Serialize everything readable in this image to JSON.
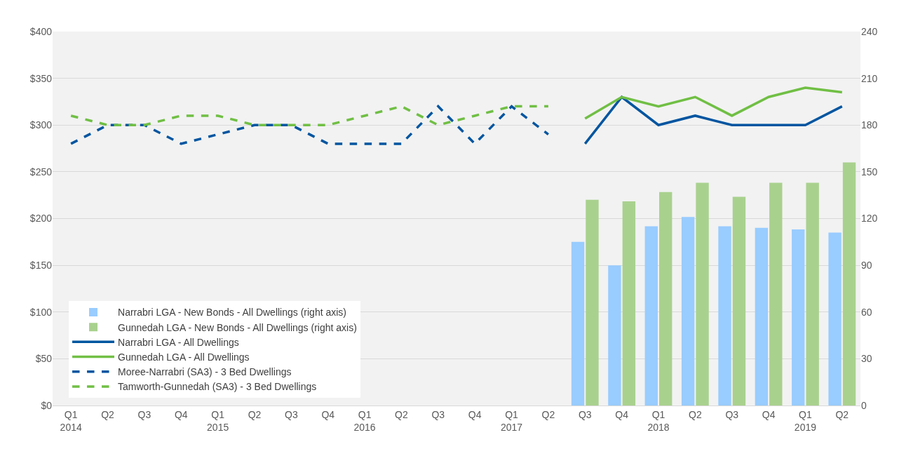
{
  "chart_data": {
    "type": "line",
    "categories": [
      "Q1\n2014",
      "Q2",
      "Q3",
      "Q4",
      "Q1\n2015",
      "Q2",
      "Q3",
      "Q4",
      "Q1\n2016",
      "Q2",
      "Q3",
      "Q4",
      "Q1\n2017",
      "Q2",
      "Q3",
      "Q4",
      "Q1\n2018",
      "Q2",
      "Q3",
      "Q4",
      "Q1\n2019",
      "Q2"
    ],
    "series": [
      {
        "name": "Narrabri LGA - New Bonds - All Dwellings (right axis)",
        "type": "bar",
        "axis": "y2",
        "color": "#99ccff",
        "values": [
          null,
          null,
          null,
          null,
          null,
          null,
          null,
          null,
          null,
          null,
          null,
          null,
          null,
          null,
          105,
          90,
          115,
          121,
          115,
          114,
          113,
          111
        ]
      },
      {
        "name": "Gunnedah LGA - New Bonds - All Dwellings (right axis)",
        "type": "bar",
        "axis": "y2",
        "color": "#a9d18e",
        "values": [
          null,
          null,
          null,
          null,
          null,
          null,
          null,
          null,
          null,
          null,
          null,
          null,
          null,
          null,
          132,
          131,
          137,
          143,
          134,
          143,
          143,
          156
        ]
      },
      {
        "name": "Narrabri LGA - All Dwellings",
        "color": "#0055a0",
        "line_style": "solid",
        "values": [
          null,
          null,
          null,
          null,
          null,
          null,
          null,
          null,
          null,
          null,
          null,
          null,
          null,
          null,
          280,
          330,
          300,
          310,
          300,
          300,
          300,
          320
        ]
      },
      {
        "name": "Gunnedah LGA - All Dwellings",
        "color": "#70bf44",
        "line_style": "solid",
        "values": [
          null,
          null,
          null,
          null,
          null,
          null,
          null,
          null,
          null,
          null,
          null,
          null,
          null,
          null,
          307,
          330,
          320,
          330,
          310,
          330,
          340,
          335
        ]
      },
      {
        "name": "Moree-Narrabri (SA3) - 3 Bed Dwellings",
        "color": "#0055a0",
        "line_style": "dashed",
        "values": [
          280,
          300,
          300,
          280,
          290,
          300,
          300,
          280,
          280,
          280,
          320,
          280,
          320,
          290,
          null,
          null,
          null,
          null,
          null,
          null,
          null,
          null
        ]
      },
      {
        "name": "Tamworth-Gunnedah (SA3) - 3 Bed Dwellings",
        "color": "#70bf44",
        "line_style": "dashed",
        "values": [
          310,
          300,
          300,
          310,
          310,
          300,
          300,
          300,
          310,
          320,
          300,
          310,
          320,
          320,
          null,
          null,
          null,
          null,
          null,
          null,
          null,
          null
        ]
      }
    ],
    "ylim": [
      0,
      400
    ],
    "yticks": [
      {
        "value": 0,
        "label": "$0"
      },
      {
        "value": 50,
        "label": "$50"
      },
      {
        "value": 100,
        "label": "$100"
      },
      {
        "value": 150,
        "label": "$150"
      },
      {
        "value": 200,
        "label": "$200"
      },
      {
        "value": 250,
        "label": "$250"
      },
      {
        "value": 300,
        "label": "$300"
      },
      {
        "value": 350,
        "label": "$350"
      },
      {
        "value": 400,
        "label": "$400"
      }
    ],
    "y2lim": [
      0,
      240
    ],
    "y2ticks": [
      0,
      30,
      60,
      90,
      120,
      150,
      180,
      210,
      240
    ],
    "grid": "y",
    "legend": "bottom left",
    "marker": "none"
  }
}
